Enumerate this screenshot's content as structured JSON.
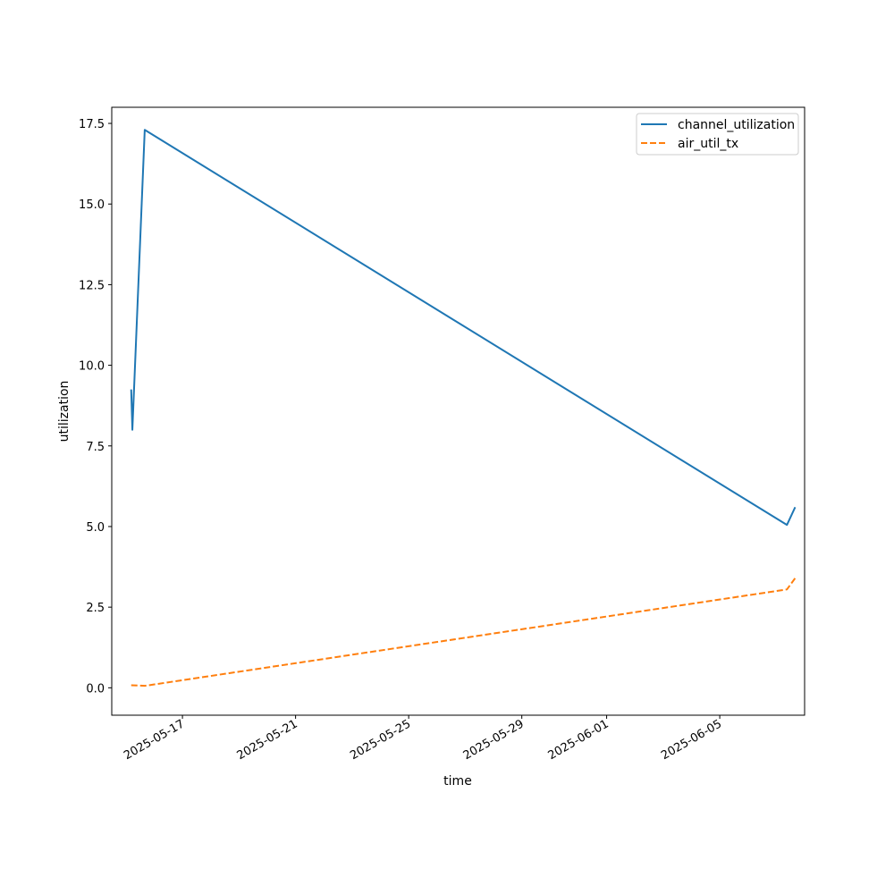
{
  "chart_data": {
    "type": "line",
    "title": "",
    "xlabel": "time",
    "ylabel": "utilization",
    "x_axis": {
      "kind": "date",
      "range": [
        "2025-05-14T12:00",
        "2025-06-08T00:00"
      ],
      "ticks": [
        "2025-05-17",
        "2025-05-21",
        "2025-05-25",
        "2025-05-29",
        "2025-06-01",
        "2025-06-05"
      ]
    },
    "y_axis": {
      "range": [
        -0.85,
        18.0
      ],
      "ticks": [
        0.0,
        2.5,
        5.0,
        7.5,
        10.0,
        12.5,
        15.0,
        17.5
      ],
      "tick_labels": [
        "0.0",
        "2.5",
        "5.0",
        "7.5",
        "10.0",
        "12.5",
        "15.0",
        "17.5"
      ]
    },
    "grid": false,
    "legend_position": "top-right",
    "series": [
      {
        "name": "channel_utilization",
        "color": "#1f77b4",
        "style": "solid",
        "points": [
          {
            "x": "2025-05-15T04:30",
            "y": 9.25
          },
          {
            "x": "2025-05-15T05:30",
            "y": 8.0
          },
          {
            "x": "2025-05-15T16:00",
            "y": 17.3
          },
          {
            "x": "2025-06-07T09:00",
            "y": 5.05
          },
          {
            "x": "2025-06-07T16:00",
            "y": 5.6
          }
        ]
      },
      {
        "name": "air_util_tx",
        "color": "#ff7f0e",
        "style": "dashed",
        "points": [
          {
            "x": "2025-05-15T04:30",
            "y": 0.08
          },
          {
            "x": "2025-05-15T16:00",
            "y": 0.06
          },
          {
            "x": "2025-06-07T09:00",
            "y": 3.05
          },
          {
            "x": "2025-06-07T16:00",
            "y": 3.4
          }
        ]
      }
    ]
  }
}
